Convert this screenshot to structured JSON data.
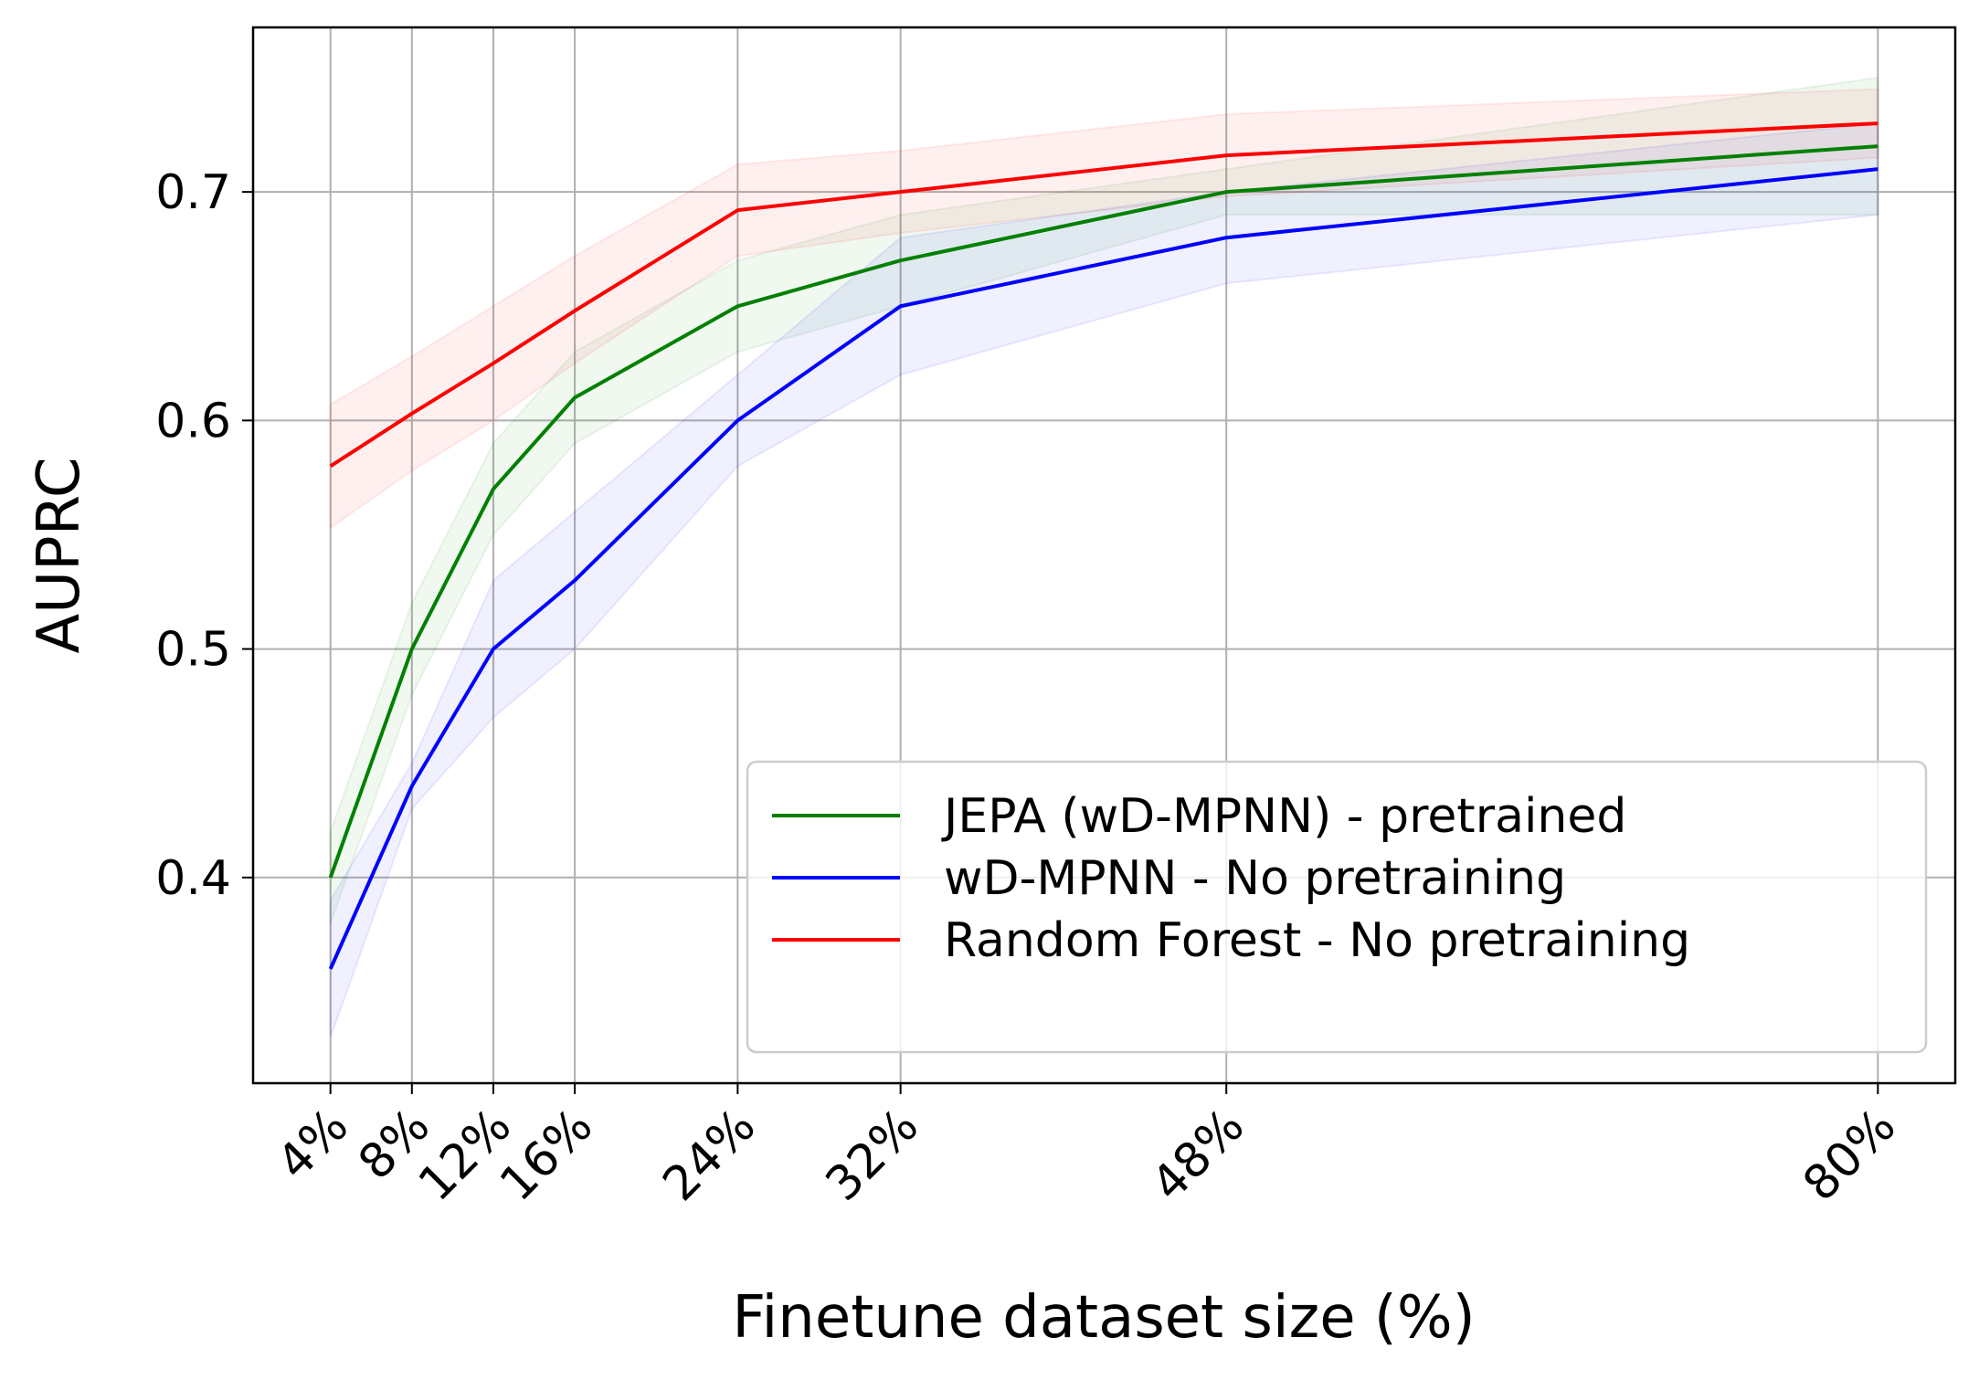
{
  "chart_data": {
    "type": "line",
    "title": "",
    "xlabel": "Finetune dataset size (%)",
    "ylabel": "AUPRC",
    "x": [
      4,
      8,
      12,
      16,
      24,
      32,
      48,
      80
    ],
    "x_tick_labels": [
      "4%",
      "8%",
      "12%",
      "16%",
      "24%",
      "32%",
      "48%",
      "80%"
    ],
    "xlim": [
      0.2,
      83.8
    ],
    "ylim": [
      0.31,
      0.772
    ],
    "y_ticks": [
      0.4,
      0.5,
      0.6,
      0.7
    ],
    "y_tick_labels": [
      "0.4",
      "0.5",
      "0.6",
      "0.7"
    ],
    "grid": true,
    "legend_position": "lower-right",
    "series": [
      {
        "name": "JEPA (wD-MPNN) - pretrained",
        "color": "#008000",
        "values": [
          0.4,
          0.5,
          0.57,
          0.61,
          0.65,
          0.67,
          0.7,
          0.72
        ],
        "lower": [
          0.38,
          0.48,
          0.55,
          0.59,
          0.63,
          0.65,
          0.69,
          0.69
        ],
        "upper": [
          0.42,
          0.52,
          0.59,
          0.63,
          0.67,
          0.69,
          0.71,
          0.75
        ]
      },
      {
        "name": "wD-MPNN - No pretraining",
        "color": "#0000ff",
        "values": [
          0.36,
          0.44,
          0.5,
          0.53,
          0.6,
          0.65,
          0.68,
          0.71
        ],
        "lower": [
          0.33,
          0.43,
          0.47,
          0.5,
          0.58,
          0.62,
          0.66,
          0.69
        ],
        "upper": [
          0.39,
          0.45,
          0.53,
          0.56,
          0.62,
          0.68,
          0.7,
          0.73
        ]
      },
      {
        "name": "Random Forest - No pretraining",
        "color": "#ff0000",
        "values": [
          0.58,
          0.603,
          0.625,
          0.648,
          0.692,
          0.7,
          0.716,
          0.73
        ],
        "lower": [
          0.553,
          0.578,
          0.6,
          0.625,
          0.672,
          0.682,
          0.698,
          0.715
        ],
        "upper": [
          0.607,
          0.628,
          0.65,
          0.672,
          0.712,
          0.718,
          0.734,
          0.745
        ]
      }
    ]
  }
}
